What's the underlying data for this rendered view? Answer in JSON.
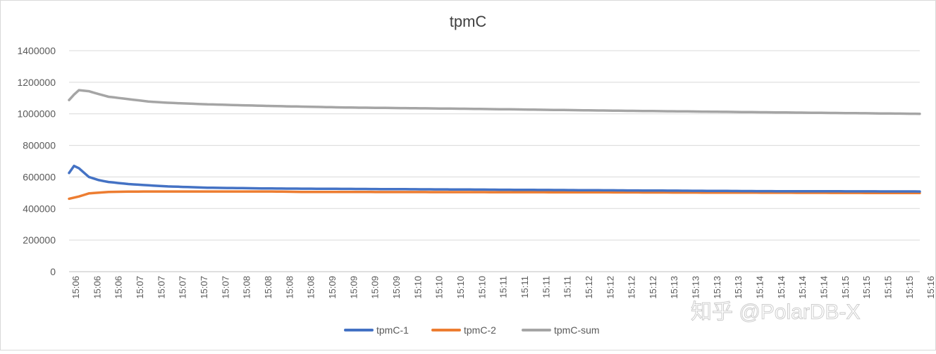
{
  "chart_data": {
    "type": "line",
    "title": "tpmC",
    "xlabel": "",
    "ylabel": "",
    "ylim": [
      0,
      1400000
    ],
    "y_ticks": [
      "0",
      "200000",
      "400000",
      "600000",
      "800000",
      "1000000",
      "1200000",
      "1400000"
    ],
    "y_tick_values": [
      0,
      200000,
      400000,
      600000,
      800000,
      1000000,
      1200000,
      1400000
    ],
    "x_tick_labels": [
      "15:06",
      "15:06",
      "15:06",
      "15:07",
      "15:07",
      "15:07",
      "15:07",
      "15:07",
      "15:08",
      "15:08",
      "15:08",
      "15:08",
      "15:09",
      "15:09",
      "15:09",
      "15:09",
      "15:10",
      "15:10",
      "15:10",
      "15:10",
      "15:11",
      "15:11",
      "15:11",
      "15:11",
      "15:12",
      "15:12",
      "15:12",
      "15:12",
      "15:13",
      "15:13",
      "15:13",
      "15:13",
      "15:14",
      "15:14",
      "15:14",
      "15:14",
      "15:15",
      "15:15",
      "15:15",
      "15:15",
      "15:16",
      "15:16",
      "15:16"
    ],
    "grid": true,
    "legend_position": "bottom",
    "series": [
      {
        "name": "tpmC-1",
        "color": "#4472C4",
        "anchors": [
          [
            0,
            625000
          ],
          [
            1,
            670000
          ],
          [
            2,
            655000
          ],
          [
            4,
            600000
          ],
          [
            6,
            580000
          ],
          [
            8,
            568000
          ],
          [
            12,
            555000
          ],
          [
            16,
            547000
          ],
          [
            20,
            540000
          ],
          [
            28,
            532000
          ],
          [
            40,
            527000
          ],
          [
            64,
            523000
          ],
          [
            100,
            517000
          ],
          [
            140,
            510000
          ],
          [
            172,
            508000
          ]
        ]
      },
      {
        "name": "tpmC-2",
        "color": "#ED7D31",
        "anchors": [
          [
            0,
            462000
          ],
          [
            2,
            476000
          ],
          [
            4,
            496000
          ],
          [
            8,
            505000
          ],
          [
            12,
            507000
          ],
          [
            16,
            508000
          ],
          [
            40,
            508000
          ],
          [
            48,
            505000
          ],
          [
            100,
            503000
          ],
          [
            140,
            500000
          ],
          [
            172,
            498000
          ]
        ]
      },
      {
        "name": "tpmC-sum",
        "color": "#A5A5A5",
        "anchors": [
          [
            0,
            1087000
          ],
          [
            1,
            1122000
          ],
          [
            2,
            1150000
          ],
          [
            4,
            1143000
          ],
          [
            6,
            1125000
          ],
          [
            8,
            1108000
          ],
          [
            12,
            1093000
          ],
          [
            16,
            1078000
          ],
          [
            20,
            1070000
          ],
          [
            28,
            1060000
          ],
          [
            40,
            1050000
          ],
          [
            56,
            1040000
          ],
          [
            80,
            1032000
          ],
          [
            110,
            1020000
          ],
          [
            140,
            1010000
          ],
          [
            172,
            1000000
          ]
        ]
      }
    ]
  },
  "watermark": "知乎 @PolarDB-X"
}
